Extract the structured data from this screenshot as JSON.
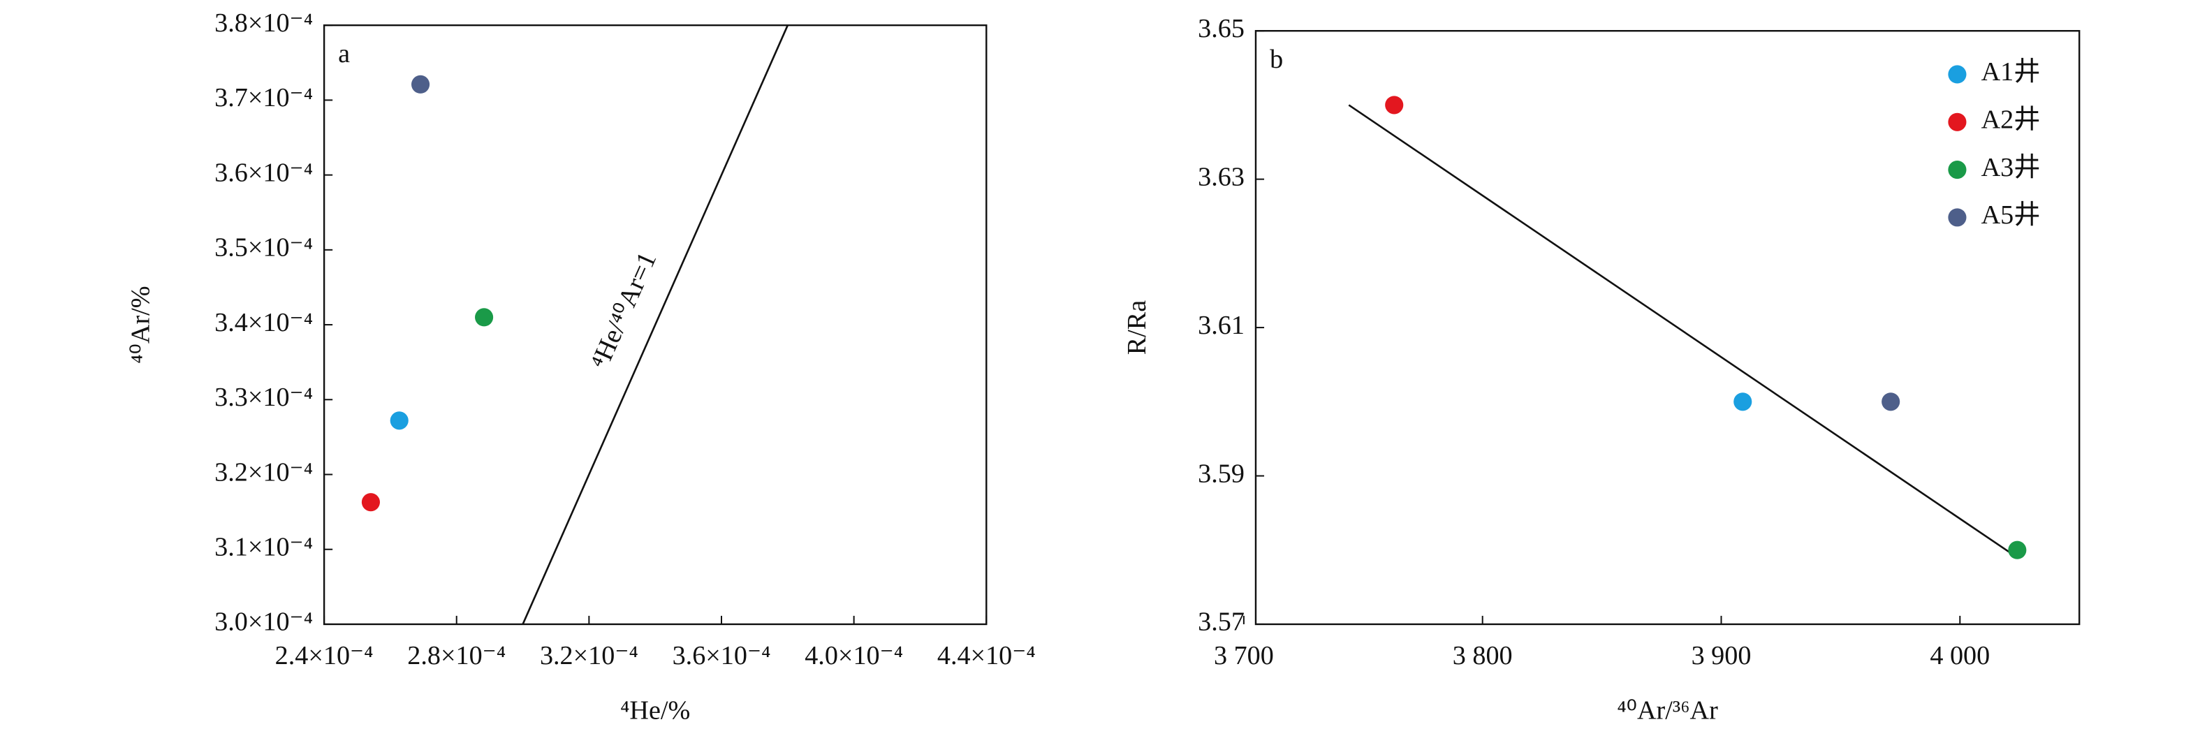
{
  "chart_data": [
    {
      "type": "scatter",
      "panel_label": "a",
      "x_label": "⁴He/%",
      "y_label": "⁴⁰Ar/%",
      "annotation": "⁴He/⁴⁰Ar=1",
      "xlim": [
        0.00024,
        0.00044
      ],
      "xticks": [
        {
          "value": 0.00024,
          "label": "2.4×10⁻⁴"
        },
        {
          "value": 0.00028,
          "label": "2.8×10⁻⁴"
        },
        {
          "value": 0.00032,
          "label": "3.2×10⁻⁴"
        },
        {
          "value": 0.00036,
          "label": "3.6×10⁻⁴"
        },
        {
          "value": 0.0004,
          "label": "4.0×10⁻⁴"
        },
        {
          "value": 0.00044,
          "label": "4.4×10⁻⁴"
        }
      ],
      "ylim": [
        0.0003,
        0.00038
      ],
      "yticks": [
        {
          "value": 0.0003,
          "label": "3.0×10⁻⁴"
        },
        {
          "value": 0.00031,
          "label": "3.1×10⁻⁴"
        },
        {
          "value": 0.00032,
          "label": "3.2×10⁻⁴"
        },
        {
          "value": 0.00033,
          "label": "3.3×10⁻⁴"
        },
        {
          "value": 0.00034,
          "label": "3.4×10⁻⁴"
        },
        {
          "value": 0.00035,
          "label": "3.5×10⁻⁴"
        },
        {
          "value": 0.00036,
          "label": "3.6×10⁻⁴"
        },
        {
          "value": 0.00037,
          "label": "3.7×10⁻⁴"
        },
        {
          "value": 0.00038,
          "label": "3.8×10⁻⁴"
        }
      ],
      "reference_line": {
        "x": [
          0.0003,
          0.00038
        ],
        "y": [
          0.0003,
          0.00038
        ]
      },
      "series": [
        {
          "color": "#1a9fe0",
          "x": [
            0.0002627
          ],
          "values": [
            0.0003272
          ]
        },
        {
          "color": "#e3171f",
          "x": [
            0.0002541
          ],
          "values": [
            0.0003163
          ]
        },
        {
          "color": "#1a9a48",
          "x": [
            0.0002883
          ],
          "values": [
            0.000341
          ]
        },
        {
          "color": "#4e5f8a",
          "x": [
            0.0002691
          ],
          "values": [
            0.0003721
          ]
        }
      ]
    },
    {
      "type": "scatter",
      "panel_label": "b",
      "x_label": "⁴⁰Ar/³⁶Ar",
      "y_label": "R/Ra",
      "xlim": [
        3705,
        4050
      ],
      "xticks": [
        {
          "value": 3700,
          "label": "3 700"
        },
        {
          "value": 3800,
          "label": "3 800"
        },
        {
          "value": 3900,
          "label": "3 900"
        },
        {
          "value": 4000,
          "label": "4 000"
        }
      ],
      "ylim": [
        3.57,
        3.65
      ],
      "yticks": [
        3.65,
        3.63,
        3.61,
        3.59,
        3.57
      ],
      "legend": "upper right",
      "reference_line": {
        "x": [
          3744,
          4024
        ],
        "y": [
          3.64,
          3.579
        ]
      },
      "series": [
        {
          "name": "A1井",
          "color": "#1a9fe0",
          "x": [
            3909
          ],
          "values": [
            3.6
          ]
        },
        {
          "name": "A2井",
          "color": "#e3171f",
          "x": [
            3763
          ],
          "values": [
            3.64
          ]
        },
        {
          "name": "A3井",
          "color": "#1a9a48",
          "x": [
            4024
          ],
          "values": [
            3.58
          ]
        },
        {
          "name": "A5井",
          "color": "#4e5f8a",
          "x": [
            3971
          ],
          "values": [
            3.6
          ]
        }
      ]
    }
  ]
}
